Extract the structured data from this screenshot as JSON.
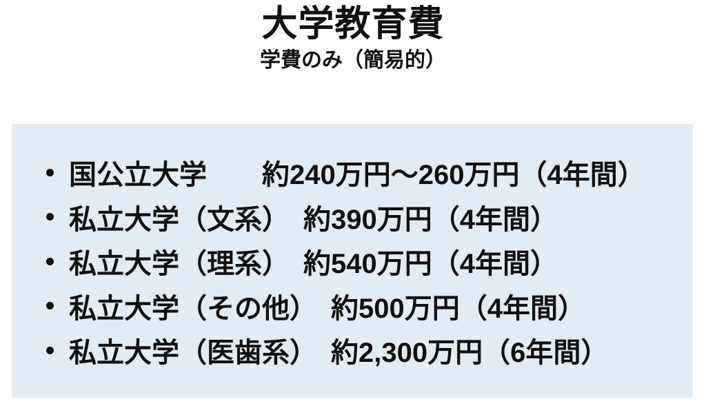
{
  "page": {
    "title": "大学教育費",
    "subtitle": "学費のみ（簡易的）"
  },
  "content": {
    "items": [
      "国公立大学　　約240万円〜260万円（4年間）",
      "私立大学（文系）　約390万円（4年間）",
      "私立大学（理系）　約540万円（4年間）",
      "私立大学（その他）　約500万円（4年間）",
      "私立大学（医歯系）　約2,300万円（6年間）"
    ]
  },
  "colors": {
    "box_background": "#e2ecf4",
    "text": "#111111",
    "page_background": "#ffffff"
  }
}
